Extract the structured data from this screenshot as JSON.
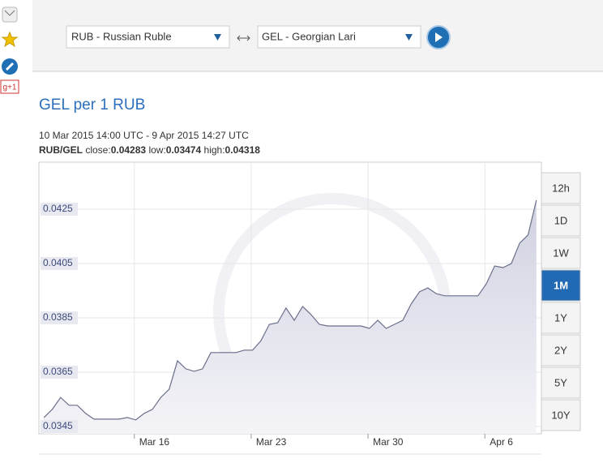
{
  "ui": {
    "from_currency": "RUB - Russian Ruble",
    "to_currency": "GEL - Georgian Lari",
    "gplus": "g+1",
    "ranges": [
      "12h",
      "1D",
      "1W",
      "1M",
      "1Y",
      "2Y",
      "5Y",
      "10Y"
    ],
    "active_range": "1M"
  },
  "chart_data": {
    "type": "line",
    "title": "GEL per 1 RUB",
    "subtitle": "10 Mar 2015 14:00 UTC - 9 Apr 2015 14:27 UTC",
    "pair": "RUB/GEL",
    "close_label": "close:",
    "close": 0.04283,
    "low_label": "low:",
    "low": 0.03474,
    "high_label": "high:",
    "high": 0.04318,
    "color": "#6a6f8a",
    "fill": "#dcdde8",
    "values": [
      0.03483,
      0.03513,
      0.03557,
      0.03528,
      0.03528,
      0.03498,
      0.03477,
      0.03477,
      0.03477,
      0.03477,
      0.03483,
      0.03474,
      0.03498,
      0.03513,
      0.03557,
      0.03587,
      0.03692,
      0.03662,
      0.03653,
      0.03662,
      0.03722,
      0.03722,
      0.03722,
      0.03722,
      0.03731,
      0.03731,
      0.03766,
      0.03826,
      0.03832,
      0.03886,
      0.03841,
      0.03892,
      0.03862,
      0.03826,
      0.0382,
      0.0382,
      0.0382,
      0.0382,
      0.0382,
      0.03811,
      0.03841,
      0.03811,
      0.03826,
      0.03841,
      0.03901,
      0.03946,
      0.0396,
      0.03939,
      0.03931,
      0.03931,
      0.03931,
      0.03931,
      0.03931,
      0.03975,
      0.04041,
      0.04035,
      0.0405,
      0.04125,
      0.04155,
      0.04283
    ],
    "xlim": [
      -0.6,
      59.6
    ],
    "xticks": [
      {
        "value": 10.83,
        "label": "Mar 16"
      },
      {
        "value": 24.83,
        "label": "Mar 23"
      },
      {
        "value": 38.83,
        "label": "Mar 30"
      },
      {
        "value": 52.83,
        "label": "Apr 6"
      }
    ],
    "ylim": [
      0.03423,
      0.04423
    ],
    "yticks": [
      0.0345,
      0.0365,
      0.0385,
      0.0405,
      0.0425
    ],
    "grid": true
  }
}
